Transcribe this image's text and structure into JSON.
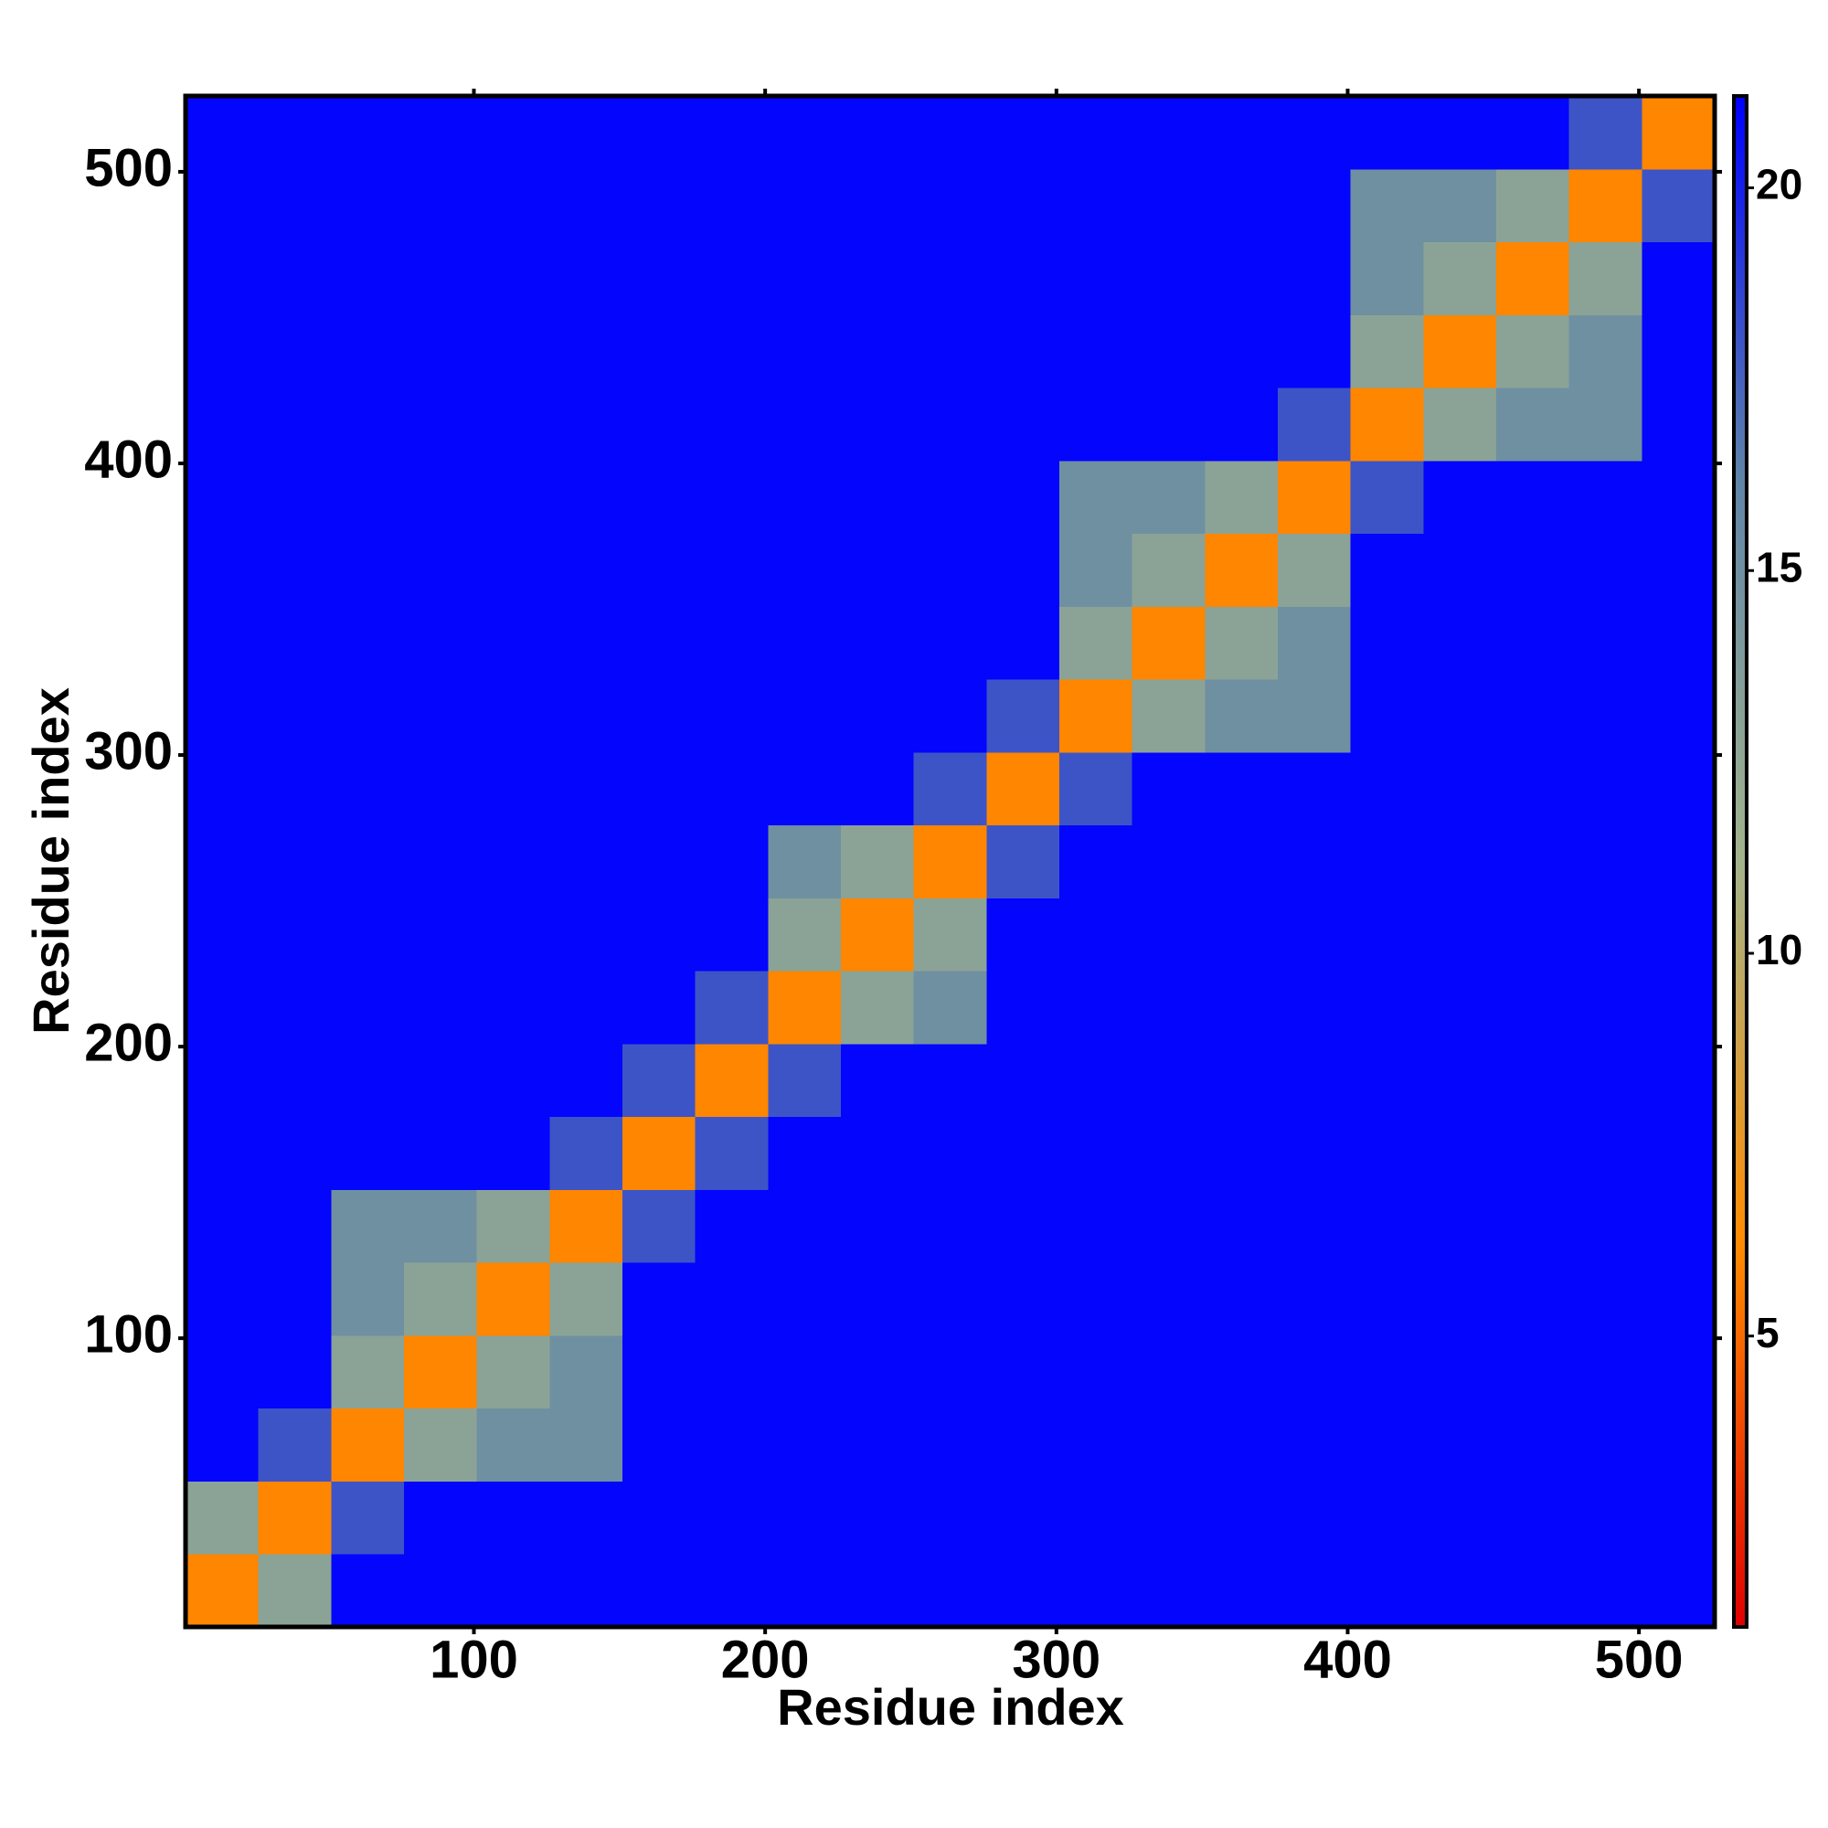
{
  "chart_data": {
    "type": "heatmap",
    "x_label": "Residue index",
    "y_label": "Residue index",
    "xlim": [
      1,
      526
    ],
    "ylim": [
      1,
      526
    ],
    "xticks": [
      100,
      200,
      300,
      400,
      500
    ],
    "yticks": [
      100,
      200,
      300,
      400,
      500
    ],
    "xbins": [
      1,
      26,
      51,
      76,
      101,
      126,
      151,
      176,
      201,
      226,
      251,
      276,
      301,
      326,
      351,
      376,
      401,
      426,
      451,
      476,
      501,
      526
    ],
    "ybins": [
      1,
      26,
      51,
      76,
      101,
      126,
      151,
      176,
      201,
      226,
      251,
      276,
      301,
      326,
      351,
      376,
      401,
      426,
      451,
      476,
      501,
      526
    ],
    "z": [
      [
        6,
        13,
        21,
        21,
        21,
        21,
        21,
        21,
        21,
        21,
        21,
        21,
        21,
        21,
        21,
        21,
        21,
        21,
        21,
        21,
        21
      ],
      [
        13,
        6,
        18,
        21,
        21,
        21,
        21,
        21,
        21,
        21,
        21,
        21,
        21,
        21,
        21,
        21,
        21,
        21,
        21,
        21,
        21
      ],
      [
        21,
        18,
        6,
        13,
        15,
        15,
        21,
        21,
        21,
        21,
        21,
        21,
        21,
        21,
        21,
        21,
        21,
        21,
        21,
        21,
        21
      ],
      [
        21,
        21,
        13,
        6,
        13,
        15,
        21,
        21,
        21,
        21,
        21,
        21,
        21,
        21,
        21,
        21,
        21,
        21,
        21,
        21,
        21
      ],
      [
        21,
        21,
        15,
        13,
        6,
        13,
        21,
        21,
        21,
        21,
        21,
        21,
        21,
        21,
        21,
        21,
        21,
        21,
        21,
        21,
        21
      ],
      [
        21,
        21,
        15,
        15,
        13,
        6,
        18,
        21,
        21,
        21,
        21,
        21,
        21,
        21,
        21,
        21,
        21,
        21,
        21,
        21,
        21
      ],
      [
        21,
        21,
        21,
        21,
        21,
        18,
        6,
        18,
        21,
        21,
        21,
        21,
        21,
        21,
        21,
        21,
        21,
        21,
        21,
        21,
        21
      ],
      [
        21,
        21,
        21,
        21,
        21,
        21,
        18,
        6,
        18,
        21,
        21,
        21,
        21,
        21,
        21,
        21,
        21,
        21,
        21,
        21,
        21
      ],
      [
        21,
        21,
        21,
        21,
        21,
        21,
        21,
        18,
        6,
        13,
        15,
        21,
        21,
        21,
        21,
        21,
        21,
        21,
        21,
        21,
        21
      ],
      [
        21,
        21,
        21,
        21,
        21,
        21,
        21,
        21,
        13,
        6,
        13,
        21,
        21,
        21,
        21,
        21,
        21,
        21,
        21,
        21,
        21
      ],
      [
        21,
        21,
        21,
        21,
        21,
        21,
        21,
        21,
        15,
        13,
        6,
        18,
        21,
        21,
        21,
        21,
        21,
        21,
        21,
        21,
        21
      ],
      [
        21,
        21,
        21,
        21,
        21,
        21,
        21,
        21,
        21,
        21,
        18,
        6,
        18,
        21,
        21,
        21,
        21,
        21,
        21,
        21,
        21
      ],
      [
        21,
        21,
        21,
        21,
        21,
        21,
        21,
        21,
        21,
        21,
        21,
        18,
        6,
        13,
        15,
        15,
        21,
        21,
        21,
        21,
        21
      ],
      [
        21,
        21,
        21,
        21,
        21,
        21,
        21,
        21,
        21,
        21,
        21,
        21,
        13,
        6,
        13,
        15,
        21,
        21,
        21,
        21,
        21
      ],
      [
        21,
        21,
        21,
        21,
        21,
        21,
        21,
        21,
        21,
        21,
        21,
        21,
        15,
        13,
        6,
        13,
        21,
        21,
        21,
        21,
        21
      ],
      [
        21,
        21,
        21,
        21,
        21,
        21,
        21,
        21,
        21,
        21,
        21,
        21,
        15,
        15,
        13,
        6,
        18,
        21,
        21,
        21,
        21
      ],
      [
        21,
        21,
        21,
        21,
        21,
        21,
        21,
        21,
        21,
        21,
        21,
        21,
        21,
        21,
        21,
        18,
        6,
        13,
        15,
        15,
        21
      ],
      [
        21,
        21,
        21,
        21,
        21,
        21,
        21,
        21,
        21,
        21,
        21,
        21,
        21,
        21,
        21,
        21,
        13,
        6,
        13,
        15,
        21
      ],
      [
        21,
        21,
        21,
        21,
        21,
        21,
        21,
        21,
        21,
        21,
        21,
        21,
        21,
        21,
        21,
        21,
        15,
        13,
        6,
        13,
        21
      ],
      [
        21,
        21,
        21,
        21,
        21,
        21,
        21,
        21,
        21,
        21,
        21,
        21,
        21,
        21,
        21,
        21,
        15,
        15,
        13,
        6,
        18
      ],
      [
        21,
        21,
        21,
        21,
        21,
        21,
        21,
        21,
        21,
        21,
        21,
        21,
        21,
        21,
        21,
        21,
        21,
        21,
        21,
        18,
        6
      ]
    ],
    "clim": [
      1.2,
      21.2
    ],
    "cticks": [
      5,
      10,
      15,
      20
    ],
    "colors": [
      "#e00000",
      "#ff8c00",
      "#a3b48c",
      "#5f84a8",
      "#0000ff"
    ]
  }
}
